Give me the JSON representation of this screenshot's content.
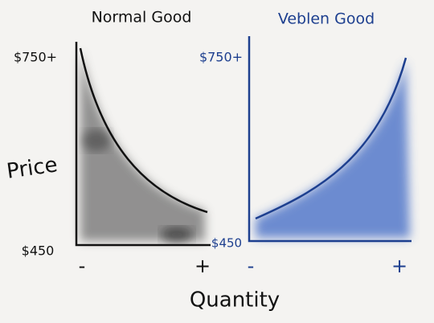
{
  "shared": {
    "y_label": "Price",
    "x_label": "Quantity"
  },
  "panels": [
    {
      "title": "Normal Good",
      "y_top": "$750+",
      "y_bottom": "$450",
      "x_left": "-",
      "x_right": "+"
    },
    {
      "title": "Veblen Good",
      "y_top": "$750+",
      "y_bottom": "$450",
      "x_left": "-",
      "x_right": "+"
    }
  ]
}
